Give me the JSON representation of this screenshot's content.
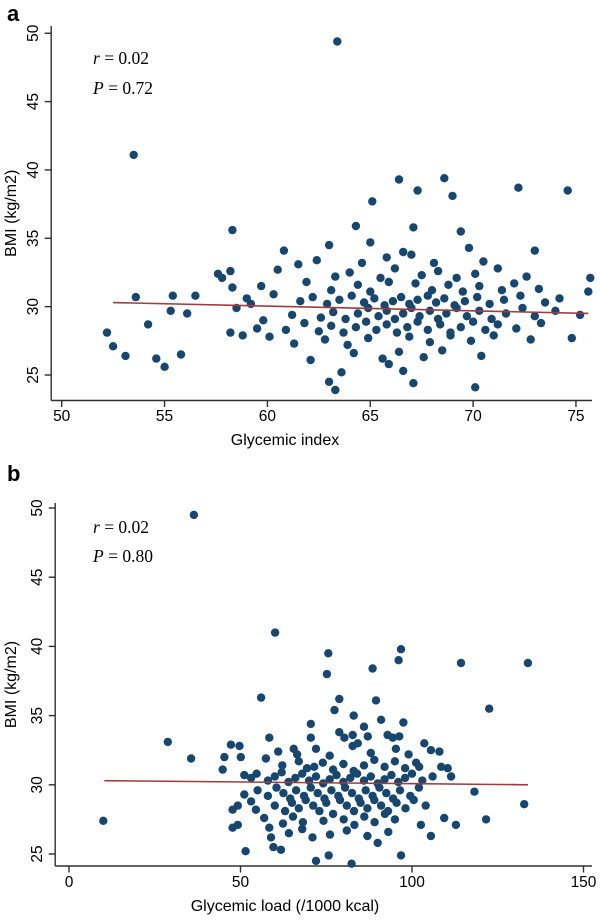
{
  "figure": {
    "panel_a_label": "a",
    "panel_b_label": "b",
    "colors": {
      "point": "#17466f",
      "line": "#a23b3d",
      "axis": "#303030",
      "text": "#000000",
      "background": "#ffffff"
    }
  },
  "chart_data": [
    {
      "type": "scatter",
      "panel": "a",
      "title": "",
      "xlabel": "Glycemic index",
      "ylabel": "BMI (kg/m2)",
      "annotation": {
        "r_text": "r = 0.02",
        "p_text": "P = 0.72"
      },
      "xlim": [
        49.5,
        75.8
      ],
      "ylim": [
        23.2,
        50.5
      ],
      "xticks": [
        50,
        55,
        60,
        65,
        70,
        75
      ],
      "yticks": [
        25,
        30,
        35,
        40,
        45,
        50
      ],
      "grid": false,
      "legend": null,
      "regression_line": {
        "x1": 52.5,
        "y1": 30.3,
        "x2": 75.6,
        "y2": 29.5
      },
      "points": [
        [
          52.2,
          28.1
        ],
        [
          52.5,
          27.1
        ],
        [
          53.1,
          26.4
        ],
        [
          53.5,
          41.1
        ],
        [
          53.6,
          30.7
        ],
        [
          54.2,
          28.7
        ],
        [
          54.6,
          26.2
        ],
        [
          55.0,
          25.6
        ],
        [
          55.3,
          29.7
        ],
        [
          55.4,
          30.8
        ],
        [
          55.8,
          26.5
        ],
        [
          56.1,
          29.5
        ],
        [
          56.5,
          30.8
        ],
        [
          57.6,
          32.4
        ],
        [
          57.8,
          32.1
        ],
        [
          58.2,
          32.6
        ],
        [
          58.2,
          28.1
        ],
        [
          58.3,
          35.6
        ],
        [
          58.3,
          31.4
        ],
        [
          58.5,
          29.9
        ],
        [
          58.8,
          27.9
        ],
        [
          59.0,
          30.6
        ],
        [
          59.2,
          30.2
        ],
        [
          59.5,
          28.4
        ],
        [
          59.7,
          31.5
        ],
        [
          59.8,
          29.0
        ],
        [
          60.1,
          27.8
        ],
        [
          60.3,
          30.9
        ],
        [
          60.5,
          32.7
        ],
        [
          60.8,
          34.1
        ],
        [
          60.9,
          28.3
        ],
        [
          61.2,
          29.4
        ],
        [
          61.3,
          27.3
        ],
        [
          61.5,
          33.1
        ],
        [
          61.6,
          30.4
        ],
        [
          61.8,
          28.8
        ],
        [
          61.9,
          31.8
        ],
        [
          62.1,
          26.1
        ],
        [
          62.2,
          30.7
        ],
        [
          62.4,
          33.4
        ],
        [
          62.5,
          28.2
        ],
        [
          62.6,
          29.2
        ],
        [
          62.8,
          27.6
        ],
        [
          62.9,
          30.2
        ],
        [
          63.0,
          34.5
        ],
        [
          63.0,
          24.5
        ],
        [
          63.1,
          28.6
        ],
        [
          63.1,
          31.2
        ],
        [
          63.2,
          29.6
        ],
        [
          63.3,
          32.2
        ],
        [
          63.3,
          23.9
        ],
        [
          63.4,
          49.4
        ],
        [
          63.5,
          30.5
        ],
        [
          63.6,
          25.2
        ],
        [
          63.7,
          28.1
        ],
        [
          63.8,
          29.1
        ],
        [
          63.9,
          27.2
        ],
        [
          64.0,
          32.5
        ],
        [
          64.1,
          30.8
        ],
        [
          64.2,
          26.6
        ],
        [
          64.3,
          35.9
        ],
        [
          64.3,
          28.5
        ],
        [
          64.4,
          31.6
        ],
        [
          64.4,
          29.5
        ],
        [
          64.6,
          33.2
        ],
        [
          64.7,
          30.3
        ],
        [
          64.8,
          28.9
        ],
        [
          64.9,
          29.9
        ],
        [
          64.9,
          27.7
        ],
        [
          65.0,
          34.7
        ],
        [
          65.0,
          31.1
        ],
        [
          65.1,
          37.7
        ],
        [
          65.2,
          30.6
        ],
        [
          65.3,
          28.3
        ],
        [
          65.4,
          29.3
        ],
        [
          65.5,
          32.1
        ],
        [
          65.6,
          26.2
        ],
        [
          65.7,
          30.1
        ],
        [
          65.8,
          33.6
        ],
        [
          65.8,
          29.7
        ],
        [
          65.8,
          28.7
        ],
        [
          65.9,
          31.8
        ],
        [
          65.9,
          25.8
        ],
        [
          66.1,
          30.4
        ],
        [
          66.2,
          32.8
        ],
        [
          66.2,
          29.1
        ],
        [
          66.3,
          28.1
        ],
        [
          66.4,
          39.3
        ],
        [
          66.4,
          26.7
        ],
        [
          66.5,
          30.7
        ],
        [
          66.6,
          34.0
        ],
        [
          66.6,
          29.5
        ],
        [
          66.6,
          25.3
        ],
        [
          66.8,
          28.5
        ],
        [
          66.9,
          30.2
        ],
        [
          66.9,
          27.8
        ],
        [
          67.0,
          33.8
        ],
        [
          67.0,
          29.9
        ],
        [
          67.1,
          35.8
        ],
        [
          67.1,
          24.4
        ],
        [
          67.2,
          31.7
        ],
        [
          67.3,
          38.5
        ],
        [
          67.3,
          30.5
        ],
        [
          67.3,
          28.9
        ],
        [
          67.4,
          29.3
        ],
        [
          67.5,
          32.3
        ],
        [
          67.6,
          26.3
        ],
        [
          67.8,
          30.8
        ],
        [
          67.8,
          28.3
        ],
        [
          67.9,
          29.7
        ],
        [
          67.9,
          27.4
        ],
        [
          68.0,
          31.2
        ],
        [
          68.1,
          33.2
        ],
        [
          68.2,
          30.3
        ],
        [
          68.3,
          32.6
        ],
        [
          68.3,
          29.1
        ],
        [
          68.4,
          28.7
        ],
        [
          68.5,
          26.8
        ],
        [
          68.6,
          39.4
        ],
        [
          68.6,
          30.6
        ],
        [
          68.7,
          29.5
        ],
        [
          68.8,
          31.6
        ],
        [
          68.9,
          28.1
        ],
        [
          68.9,
          27.9
        ],
        [
          69.0,
          38.1
        ],
        [
          69.1,
          30.1
        ],
        [
          69.2,
          32.1
        ],
        [
          69.2,
          29.9
        ],
        [
          69.4,
          35.5
        ],
        [
          69.4,
          28.5
        ],
        [
          69.5,
          31.1
        ],
        [
          69.6,
          30.4
        ],
        [
          69.7,
          29.3
        ],
        [
          69.8,
          34.3
        ],
        [
          69.9,
          27.5
        ],
        [
          70.0,
          28.9
        ],
        [
          70.1,
          32.4
        ],
        [
          70.1,
          24.1
        ],
        [
          70.2,
          30.7
        ],
        [
          70.3,
          31.5
        ],
        [
          70.3,
          29.7
        ],
        [
          70.4,
          26.4
        ],
        [
          70.5,
          33.3
        ],
        [
          70.6,
          28.3
        ],
        [
          70.8,
          30.2
        ],
        [
          70.9,
          29.1
        ],
        [
          71.0,
          27.9
        ],
        [
          71.2,
          32.8
        ],
        [
          71.2,
          28.7
        ],
        [
          71.4,
          31.2
        ],
        [
          71.5,
          30.5
        ],
        [
          71.6,
          29.5
        ],
        [
          72.0,
          31.7
        ],
        [
          72.1,
          28.4
        ],
        [
          72.2,
          38.7
        ],
        [
          72.3,
          30.8
        ],
        [
          72.4,
          29.9
        ],
        [
          72.6,
          32.2
        ],
        [
          72.8,
          27.6
        ],
        [
          73.0,
          34.1
        ],
        [
          73.0,
          29.3
        ],
        [
          73.2,
          31.3
        ],
        [
          73.3,
          28.8
        ],
        [
          73.5,
          30.3
        ],
        [
          74.0,
          29.7
        ],
        [
          74.2,
          30.6
        ],
        [
          74.6,
          38.5
        ],
        [
          74.8,
          27.7
        ],
        [
          75.2,
          29.4
        ],
        [
          75.6,
          31.1
        ],
        [
          75.7,
          32.1
        ]
      ]
    },
    {
      "type": "scatter",
      "panel": "b",
      "title": "",
      "xlabel": "Glycemic load (/1000 kcal)",
      "ylabel": "BMI (kg/m2)",
      "annotation": {
        "r_text": "r = 0.02",
        "p_text": "P = 0.80"
      },
      "xlim": [
        -4,
        157
      ],
      "ylim": [
        23.2,
        50.5
      ],
      "xticks": [
        0,
        50,
        100,
        150
      ],
      "yticks": [
        25,
        30,
        35,
        40,
        45,
        50
      ],
      "grid": false,
      "legend": null,
      "regression_line": {
        "x1": 10.3,
        "y1": 30.3,
        "x2": 133.8,
        "y2": 30.0
      },
      "points": [
        [
          10.0,
          27.4
        ],
        [
          28.8,
          33.1
        ],
        [
          35.6,
          31.9
        ],
        [
          36.4,
          49.5
        ],
        [
          44.8,
          31.1
        ],
        [
          45.3,
          32.0
        ],
        [
          47.2,
          32.9
        ],
        [
          47.7,
          28.2
        ],
        [
          47.7,
          26.9
        ],
        [
          49.2,
          28.5
        ],
        [
          49.2,
          27.1
        ],
        [
          49.7,
          32.8
        ],
        [
          50.1,
          32.0
        ],
        [
          51.1,
          30.7
        ],
        [
          51.1,
          29.3
        ],
        [
          51.5,
          25.2
        ],
        [
          53.1,
          30.5
        ],
        [
          53.1,
          28.8
        ],
        [
          54.5,
          28.2
        ],
        [
          54.7,
          30.8
        ],
        [
          55.0,
          29.6
        ],
        [
          56.0,
          36.3
        ],
        [
          56.9,
          27.6
        ],
        [
          57.4,
          31.9
        ],
        [
          58.0,
          30.3
        ],
        [
          58.0,
          29.2
        ],
        [
          58.4,
          33.4
        ],
        [
          58.4,
          26.9
        ],
        [
          58.9,
          26.2
        ],
        [
          59.6,
          25.5
        ],
        [
          60.0,
          30.6
        ],
        [
          60.0,
          28.5
        ],
        [
          60.1,
          41.0
        ],
        [
          60.5,
          29.8
        ],
        [
          61.0,
          32.4
        ],
        [
          61.8,
          25.3
        ],
        [
          62.0,
          30.9
        ],
        [
          62.2,
          31.4
        ],
        [
          62.4,
          27.2
        ],
        [
          62.5,
          29.4
        ],
        [
          63.0,
          28.1
        ],
        [
          64.0,
          30.2
        ],
        [
          64.1,
          26.5
        ],
        [
          64.5,
          29.0
        ],
        [
          65.0,
          28.7
        ],
        [
          65.3,
          27.7
        ],
        [
          65.5,
          32.6
        ],
        [
          66.0,
          30.5
        ],
        [
          66.2,
          29.6
        ],
        [
          66.5,
          32.2
        ],
        [
          67.0,
          31.7
        ],
        [
          67.0,
          28.3
        ],
        [
          68.0,
          30.8
        ],
        [
          68.0,
          26.8
        ],
        [
          68.2,
          27.3
        ],
        [
          68.5,
          29.2
        ],
        [
          69.0,
          28.9
        ],
        [
          69.4,
          31.2
        ],
        [
          70.0,
          30.3
        ],
        [
          70.5,
          34.4
        ],
        [
          70.5,
          33.4
        ],
        [
          70.5,
          29.8
        ],
        [
          71.0,
          26.2
        ],
        [
          71.2,
          28.5
        ],
        [
          71.5,
          31.3
        ],
        [
          72.0,
          32.6
        ],
        [
          72.0,
          30.6
        ],
        [
          72.0,
          24.5
        ],
        [
          72.5,
          29.4
        ],
        [
          73.0,
          28.1
        ],
        [
          74.0,
          31.6
        ],
        [
          74.1,
          30.1
        ],
        [
          74.2,
          27.4
        ],
        [
          74.5,
          29.0
        ],
        [
          75.0,
          28.7
        ],
        [
          75.2,
          38.0
        ],
        [
          75.6,
          39.5
        ],
        [
          75.7,
          24.9
        ],
        [
          76.0,
          32.1
        ],
        [
          76.0,
          30.4
        ],
        [
          76.1,
          26.4
        ],
        [
          76.5,
          29.6
        ],
        [
          77.0,
          31.1
        ],
        [
          77.0,
          27.9
        ],
        [
          77.4,
          35.4
        ],
        [
          78.0,
          30.7
        ],
        [
          78.5,
          29.2
        ],
        [
          78.8,
          36.2
        ],
        [
          78.8,
          33.8
        ],
        [
          79.0,
          28.9
        ],
        [
          80.0,
          31.5
        ],
        [
          80.0,
          30.2
        ],
        [
          80.1,
          27.5
        ],
        [
          80.3,
          33.4
        ],
        [
          80.5,
          29.8
        ],
        [
          81.0,
          28.5
        ],
        [
          81.0,
          26.7
        ],
        [
          82.0,
          30.5
        ],
        [
          82.4,
          24.3
        ],
        [
          82.5,
          29.4
        ],
        [
          82.7,
          33.6
        ],
        [
          82.7,
          32.8
        ],
        [
          83.0,
          35.0
        ],
        [
          83.0,
          31.0
        ],
        [
          83.1,
          28.1
        ],
        [
          83.2,
          27.1
        ],
        [
          84.0,
          30.8
        ],
        [
          84.2,
          33.0
        ],
        [
          84.5,
          29.0
        ],
        [
          85.0,
          28.7
        ],
        [
          86.0,
          34.2
        ],
        [
          86.0,
          31.4
        ],
        [
          86.0,
          30.3
        ],
        [
          86.1,
          27.7
        ],
        [
          86.5,
          29.6
        ],
        [
          87.1,
          33.5
        ],
        [
          87.0,
          28.3
        ],
        [
          87.0,
          26.3
        ],
        [
          88.0,
          32.3
        ],
        [
          88.0,
          30.6
        ],
        [
          88.5,
          38.4
        ],
        [
          88.5,
          29.2
        ],
        [
          89.0,
          31.8
        ],
        [
          89.0,
          28.9
        ],
        [
          89.1,
          27.3
        ],
        [
          89.5,
          36.1
        ],
        [
          90.0,
          30.1
        ],
        [
          90.0,
          25.8
        ],
        [
          90.5,
          29.8
        ],
        [
          91.0,
          34.7
        ],
        [
          91.0,
          28.5
        ],
        [
          92.0,
          31.3
        ],
        [
          92.0,
          30.4
        ],
        [
          92.1,
          27.9
        ],
        [
          92.5,
          29.4
        ],
        [
          92.9,
          33.6
        ],
        [
          93.0,
          28.1
        ],
        [
          93.1,
          26.6
        ],
        [
          94.0,
          30.7
        ],
        [
          94.4,
          33.4
        ],
        [
          94.5,
          29.0
        ],
        [
          95.0,
          31.7
        ],
        [
          95.0,
          27.5
        ],
        [
          95.3,
          32.6
        ],
        [
          95.5,
          28.7
        ],
        [
          96.0,
          30.2
        ],
        [
          96.1,
          39.0
        ],
        [
          96.3,
          33.5
        ],
        [
          96.5,
          29.6
        ],
        [
          96.8,
          39.8
        ],
        [
          96.8,
          24.9
        ],
        [
          97.5,
          34.5
        ],
        [
          98.0,
          31.2
        ],
        [
          98.0,
          30.5
        ],
        [
          98.1,
          28.3
        ],
        [
          99.0,
          32.2
        ],
        [
          99.5,
          29.2
        ],
        [
          100.0,
          30.8
        ],
        [
          100.5,
          28.9
        ],
        [
          101.2,
          31.6
        ],
        [
          102.0,
          29.8
        ],
        [
          102.1,
          31.3
        ],
        [
          102.6,
          27.1
        ],
        [
          103.0,
          30.3
        ],
        [
          103.6,
          33.0
        ],
        [
          104.0,
          28.5
        ],
        [
          105.5,
          32.5
        ],
        [
          105.5,
          26.3
        ],
        [
          106.0,
          30.6
        ],
        [
          108.0,
          32.4
        ],
        [
          108.5,
          31.3
        ],
        [
          109.4,
          27.6
        ],
        [
          110.4,
          31.2
        ],
        [
          111.4,
          30.6
        ],
        [
          112.8,
          27.1
        ],
        [
          114.3,
          38.8
        ],
        [
          118.2,
          29.5
        ],
        [
          121.6,
          27.5
        ],
        [
          122.5,
          35.5
        ],
        [
          132.7,
          28.6
        ],
        [
          133.8,
          38.8
        ]
      ]
    }
  ]
}
